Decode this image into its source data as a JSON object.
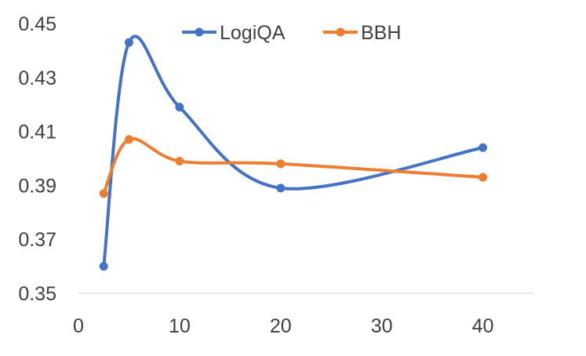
{
  "chart_data": {
    "type": "line",
    "smooth": true,
    "title": "",
    "xlabel": "",
    "ylabel": "",
    "xlim": [
      0,
      45
    ],
    "ylim": [
      0.35,
      0.45
    ],
    "x_ticks": [
      0,
      10,
      20,
      30,
      40
    ],
    "x_tick_labels": [
      "0",
      "10",
      "20",
      "30",
      "40"
    ],
    "y_ticks": [
      0.35,
      0.37,
      0.39,
      0.41,
      0.43,
      0.45
    ],
    "y_tick_labels": [
      "0.35",
      "0.37",
      "0.39",
      "0.41",
      "0.43",
      "0.45"
    ],
    "grid": false,
    "legend_position": "top",
    "series": [
      {
        "name": "LogiQA",
        "color": "#4472C4",
        "x": [
          2.5,
          5,
          10,
          20,
          40
        ],
        "y": [
          0.36,
          0.443,
          0.419,
          0.389,
          0.404
        ]
      },
      {
        "name": "BBH",
        "color": "#ED7D31",
        "x": [
          2.5,
          5,
          10,
          20,
          40
        ],
        "y": [
          0.387,
          0.407,
          0.399,
          0.398,
          0.393
        ]
      }
    ]
  }
}
